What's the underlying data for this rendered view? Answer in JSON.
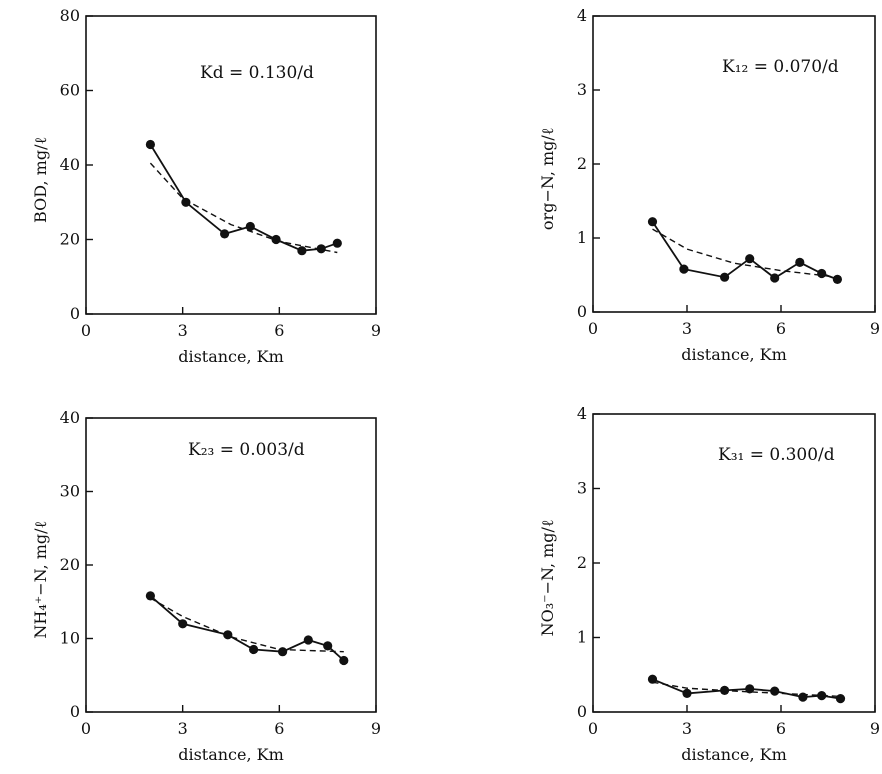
{
  "chart_data": [
    {
      "type": "line",
      "title": "",
      "xlabel": "distance, Km",
      "ylabel": "BOD, mg/ℓ",
      "annotation": "Kd = 0.130/d",
      "xlim": [
        0,
        9
      ],
      "ylim": [
        0,
        80
      ],
      "xticks": [
        0,
        3,
        6,
        9
      ],
      "yticks": [
        0,
        20,
        40,
        60,
        80
      ],
      "grid": false,
      "series": [
        {
          "style": "solid-markers",
          "x": [
            2.0,
            3.1,
            4.3,
            5.1,
            5.9,
            6.7,
            7.3,
            7.8
          ],
          "y": [
            45.5,
            30,
            21.5,
            23.5,
            20,
            17,
            17.5,
            19
          ]
        },
        {
          "style": "dashed",
          "x": [
            2.0,
            3.0,
            4.5,
            6.0,
            7.8
          ],
          "y": [
            40.5,
            31,
            24,
            19.5,
            16.5
          ]
        }
      ]
    },
    {
      "type": "line",
      "title": "",
      "xlabel": "distance, Km",
      "ylabel": "org−N, mg/ℓ",
      "annotation": "K₁₂ = 0.070/d",
      "xlim": [
        0,
        9
      ],
      "ylim": [
        0,
        4
      ],
      "xticks": [
        0,
        3,
        6,
        9
      ],
      "yticks": [
        0,
        1,
        2,
        3,
        4
      ],
      "grid": false,
      "series": [
        {
          "style": "solid-markers",
          "x": [
            1.9,
            2.9,
            4.2,
            5.0,
            5.8,
            6.6,
            7.3,
            7.8
          ],
          "y": [
            1.22,
            0.58,
            0.47,
            0.72,
            0.46,
            0.67,
            0.52,
            0.44
          ]
        },
        {
          "style": "dashed",
          "x": [
            1.9,
            3.0,
            4.5,
            6.0,
            7.8
          ],
          "y": [
            1.12,
            0.85,
            0.66,
            0.56,
            0.47
          ]
        }
      ]
    },
    {
      "type": "line",
      "title": "",
      "xlabel": "distance, Km",
      "ylabel": "NH₄⁺−N, mg/ℓ",
      "annotation": "K₂₃ = 0.003/d",
      "xlim": [
        0,
        9
      ],
      "ylim": [
        0,
        40
      ],
      "xticks": [
        0,
        3,
        6,
        9
      ],
      "yticks": [
        0,
        10,
        20,
        30,
        40
      ],
      "grid": false,
      "series": [
        {
          "style": "solid-markers",
          "x": [
            2.0,
            3.0,
            4.4,
            5.2,
            6.1,
            6.9,
            7.5,
            8.0
          ],
          "y": [
            15.8,
            12,
            10.5,
            8.5,
            8.2,
            9.8,
            9,
            7
          ]
        },
        {
          "style": "dashed",
          "x": [
            2.0,
            3.0,
            4.5,
            6.0,
            8.0
          ],
          "y": [
            15.5,
            13,
            10.2,
            8.5,
            8.2
          ]
        }
      ]
    },
    {
      "type": "line",
      "title": "",
      "xlabel": "distance, Km",
      "ylabel": "NO₃⁻−N, mg/ℓ",
      "annotation": "K₃₁ = 0.300/d",
      "xlim": [
        0,
        9
      ],
      "ylim": [
        0,
        4
      ],
      "xticks": [
        0,
        3,
        6,
        9
      ],
      "yticks": [
        0,
        1,
        2,
        3,
        4
      ],
      "grid": false,
      "series": [
        {
          "style": "solid-markers",
          "x": [
            1.9,
            3.0,
            4.2,
            5.0,
            5.8,
            6.7,
            7.3,
            7.9
          ],
          "y": [
            0.44,
            0.25,
            0.29,
            0.31,
            0.28,
            0.2,
            0.22,
            0.18
          ]
        },
        {
          "style": "dashed",
          "x": [
            1.9,
            3.0,
            4.5,
            6.0,
            7.9
          ],
          "y": [
            0.4,
            0.32,
            0.28,
            0.25,
            0.21
          ]
        }
      ]
    }
  ]
}
